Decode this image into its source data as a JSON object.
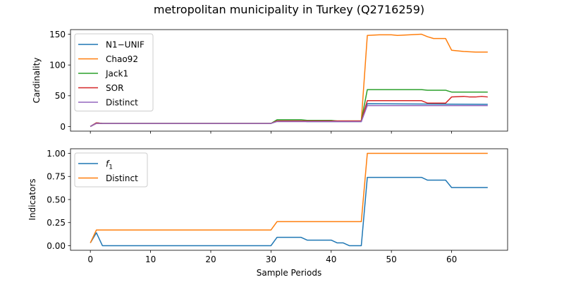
{
  "figure": {
    "title": "metropolitan municipality in Turkey (Q2716259)"
  },
  "colors": {
    "blue": "#1f77b4",
    "orange": "#ff7f0e",
    "green": "#2ca02c",
    "red": "#d62728",
    "purple": "#9467bd"
  },
  "chart_data": [
    {
      "type": "line",
      "ylabel": "Cardinality",
      "xlabel": "",
      "xlim": [
        -3.3,
        69.3
      ],
      "ylim": [
        -7.5,
        157.5
      ],
      "xticks": [
        0,
        10,
        20,
        30,
        40,
        50,
        60
      ],
      "yticks": [
        0,
        50,
        100,
        150
      ],
      "legend": "upper-left",
      "series": [
        {
          "name": "N1−UNIF",
          "color": "#1f77b4",
          "points": [
            [
              0,
              0
            ],
            [
              1,
              6
            ],
            [
              2,
              5
            ],
            [
              30,
              5
            ],
            [
              31,
              9
            ],
            [
              35,
              9
            ],
            [
              36,
              8
            ],
            [
              40,
              8
            ],
            [
              41,
              8
            ],
            [
              45,
              8
            ],
            [
              46,
              37
            ],
            [
              66,
              36
            ]
          ]
        },
        {
          "name": "Chao92",
          "color": "#ff7f0e",
          "points": [
            [
              0,
              0
            ],
            [
              1,
              5
            ],
            [
              2,
              5
            ],
            [
              30,
              5
            ],
            [
              31,
              9
            ],
            [
              45,
              9
            ],
            [
              46,
              148
            ],
            [
              48,
              149
            ],
            [
              50,
              149
            ],
            [
              51,
              148
            ],
            [
              53,
              149
            ],
            [
              55,
              150
            ],
            [
              56,
              146
            ],
            [
              57,
              143
            ],
            [
              59,
              143
            ],
            [
              60,
              124
            ],
            [
              62,
              122
            ],
            [
              64,
              121
            ],
            [
              66,
              121
            ]
          ]
        },
        {
          "name": "Jack1",
          "color": "#2ca02c",
          "points": [
            [
              0,
              0
            ],
            [
              1,
              6
            ],
            [
              2,
              5
            ],
            [
              30,
              5
            ],
            [
              31,
              11
            ],
            [
              35,
              11
            ],
            [
              36,
              10
            ],
            [
              40,
              10
            ],
            [
              41,
              9
            ],
            [
              45,
              9
            ],
            [
              46,
              60
            ],
            [
              55,
              60
            ],
            [
              56,
              59
            ],
            [
              59,
              59
            ],
            [
              60,
              56
            ],
            [
              66,
              56
            ]
          ]
        },
        {
          "name": "SOR",
          "color": "#d62728",
          "points": [
            [
              0,
              0
            ],
            [
              1,
              6
            ],
            [
              2,
              5
            ],
            [
              30,
              5
            ],
            [
              31,
              9
            ],
            [
              45,
              9
            ],
            [
              46,
              42
            ],
            [
              55,
              42
            ],
            [
              56,
              38
            ],
            [
              59,
              38
            ],
            [
              60,
              48
            ],
            [
              62,
              49
            ],
            [
              63,
              48
            ],
            [
              64,
              48
            ],
            [
              65,
              49
            ],
            [
              66,
              48
            ]
          ]
        },
        {
          "name": "Distinct",
          "color": "#9467bd",
          "points": [
            [
              0,
              0
            ],
            [
              1,
              5
            ],
            [
              30,
              5
            ],
            [
              31,
              8
            ],
            [
              45,
              8
            ],
            [
              46,
              34
            ],
            [
              66,
              34
            ]
          ]
        }
      ]
    },
    {
      "type": "line",
      "ylabel": "Indicators",
      "xlabel": "Sample Periods",
      "xlim": [
        -3.3,
        69.3
      ],
      "ylim": [
        -0.05,
        1.05
      ],
      "xticks": [
        0,
        10,
        20,
        30,
        40,
        50,
        60
      ],
      "xticklabels": [
        "0",
        "10",
        "20",
        "30",
        "40",
        "50",
        "60"
      ],
      "yticks": [
        0,
        0.25,
        0.5,
        0.75,
        1.0
      ],
      "yticklabels": [
        "0.00",
        "0.25",
        "0.50",
        "0.75",
        "1.00"
      ],
      "legend": "upper-left",
      "series": [
        {
          "name": "f1",
          "color": "#1f77b4",
          "points": [
            [
              0,
              0.03
            ],
            [
              1,
              0.14
            ],
            [
              2,
              0.0
            ],
            [
              30,
              0.0
            ],
            [
              31,
              0.09
            ],
            [
              35,
              0.09
            ],
            [
              36,
              0.06
            ],
            [
              40,
              0.06
            ],
            [
              41,
              0.03
            ],
            [
              42,
              0.03
            ],
            [
              43,
              0.0
            ],
            [
              45,
              0.0
            ],
            [
              46,
              0.74
            ],
            [
              55,
              0.74
            ],
            [
              56,
              0.71
            ],
            [
              59,
              0.71
            ],
            [
              60,
              0.63
            ],
            [
              66,
              0.63
            ]
          ]
        },
        {
          "name": "Distinct",
          "color": "#ff7f0e",
          "points": [
            [
              0,
              0.03
            ],
            [
              1,
              0.17
            ],
            [
              30,
              0.17
            ],
            [
              31,
              0.26
            ],
            [
              45,
              0.26
            ],
            [
              46,
              1.0
            ],
            [
              66,
              1.0
            ]
          ]
        }
      ]
    }
  ]
}
